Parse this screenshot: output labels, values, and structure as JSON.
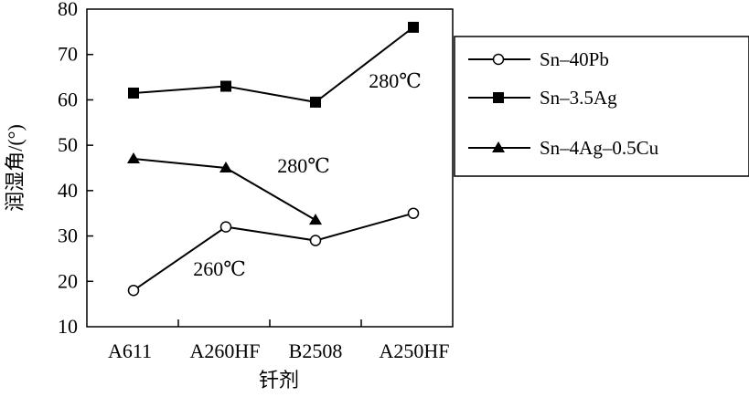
{
  "chart_data": {
    "type": "line",
    "categories": [
      "A611",
      "A260HF",
      "B2508",
      "A250HF"
    ],
    "ylabel": "润湿角/(°)",
    "xlabel": "钎剂",
    "ylim": [
      10,
      80
    ],
    "yticks": [
      10,
      20,
      30,
      40,
      50,
      60,
      70,
      80
    ],
    "grid": false,
    "legend_position": "right",
    "series": [
      {
        "name": "Sn-40Pb",
        "marker": "open-circle",
        "values": [
          18,
          32,
          29,
          35
        ]
      },
      {
        "name": "Sn-3.5Ag",
        "marker": "filled-square",
        "values": [
          61.5,
          63,
          59.5,
          76
        ]
      },
      {
        "name": "Sn-4Ag-0.5Cu",
        "marker": "filled-triangle",
        "values": [
          47,
          45,
          33.5,
          null
        ]
      }
    ],
    "annotations": [
      {
        "text": "280℃",
        "series": "Sn-3.5Ag"
      },
      {
        "text": "280℃",
        "series": "Sn-4Ag-0.5Cu"
      },
      {
        "text": "260℃",
        "series": "Sn-40Pb"
      }
    ]
  }
}
